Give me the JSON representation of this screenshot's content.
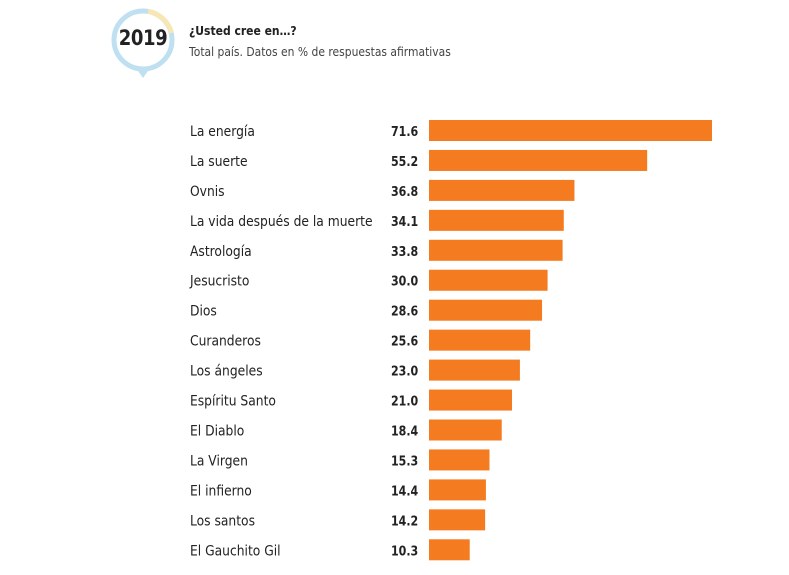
{
  "badge": {
    "year": "2019",
    "ring_color": "#bfe0f0",
    "accent_color": "#f7e7b4"
  },
  "header": {
    "title": "¿Usted cree en…?",
    "subtitle": "Total país. Datos en % de respuestas afirmativas"
  },
  "chart_data": {
    "type": "bar",
    "orientation": "horizontal",
    "title": "¿Usted cree en…?",
    "subtitle": "Total país. Datos en % de respuestas afirmativas",
    "categories": [
      "La energía",
      "La suerte",
      "Ovnis",
      "La vida después de la muerte",
      "Astrología",
      "Jesucristo",
      "Dios",
      "Curanderos",
      "Los ángeles",
      "Espíritu Santo",
      "El Diablo",
      "La Virgen",
      "El infierno",
      "Los santos",
      "El Gauchito Gil"
    ],
    "values": [
      71.6,
      55.2,
      36.8,
      34.1,
      33.8,
      30.0,
      28.6,
      25.6,
      23.0,
      21.0,
      18.4,
      15.3,
      14.4,
      14.2,
      10.3
    ],
    "value_labels": [
      "71.6",
      "55.2",
      "36.8",
      "34.1",
      "33.8",
      "30.0",
      "28.6",
      "25.6",
      "23.0",
      "21.0",
      "18.4",
      "15.3",
      "14.4",
      "14.2",
      "10.3"
    ],
    "xlim": [
      0,
      71.6
    ],
    "grid": false,
    "bar_color": "#f47b20"
  }
}
